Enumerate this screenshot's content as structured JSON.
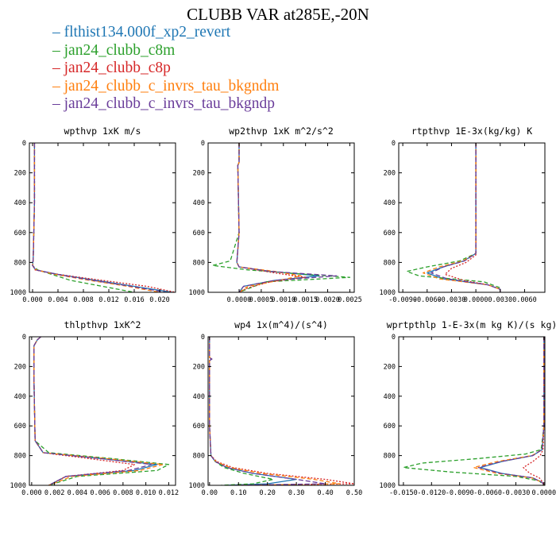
{
  "title": "CLUBB VAR at285E,-20N",
  "legend": [
    {
      "label": "flthist134.000f_xp2_revert",
      "color": "#1f77b4"
    },
    {
      "label": "jan24_clubb_c8m",
      "color": "#2ca02c"
    },
    {
      "label": "jan24_clubb_c8p",
      "color": "#d62728"
    },
    {
      "label": "jan24_clubb_c_invrs_tau_bkgndm",
      "color": "#ff7f0e"
    },
    {
      "label": "jan24_clubb_c_invrs_tau_bkgndp",
      "color": "#6a3d9a"
    }
  ],
  "chart_data": [
    {
      "type": "line",
      "title": "wpthvp  1xK m/s",
      "ylim": [
        1000,
        0
      ],
      "yticks": [
        0,
        200,
        400,
        600,
        800,
        1000
      ],
      "xlim": [
        -0.0005,
        0.0225
      ],
      "xticks": [
        0.0,
        0.004,
        0.008,
        0.012,
        0.016,
        0.02
      ],
      "xticklabels": [
        "0.000",
        "0.004",
        "0.008",
        "0.012",
        "0.016",
        "0.020"
      ],
      "series": [
        {
          "y": [
            0,
            400,
            780,
            820,
            850,
            880,
            920,
            960,
            1000
          ],
          "x": [
            0.0003,
            0.0003,
            0.0001,
            0.0,
            0.0005,
            0.004,
            0.01,
            0.016,
            0.022
          ]
        },
        {
          "y": [
            0,
            400,
            780,
            820,
            850,
            880,
            920,
            960,
            1000
          ],
          "x": [
            0.0003,
            0.0003,
            0.0001,
            0.0,
            0.0008,
            0.003,
            0.006,
            0.011,
            0.016
          ]
        },
        {
          "y": [
            0,
            400,
            780,
            820,
            850,
            880,
            920,
            960,
            1000
          ],
          "x": [
            0.0003,
            0.0003,
            0.0001,
            0.0,
            0.0004,
            0.004,
            0.011,
            0.018,
            0.0225
          ]
        },
        {
          "y": [
            0,
            400,
            780,
            820,
            850,
            880,
            920,
            960,
            1000
          ],
          "x": [
            0.0003,
            0.0003,
            0.0001,
            0.0,
            0.0006,
            0.0035,
            0.009,
            0.015,
            0.02
          ]
        },
        {
          "y": [
            0,
            400,
            780,
            820,
            850,
            880,
            920,
            960,
            1000
          ],
          "x": [
            0.0003,
            0.0003,
            0.0001,
            0.0,
            0.0005,
            0.0038,
            0.0095,
            0.0155,
            0.021
          ]
        }
      ]
    },
    {
      "type": "line",
      "title": "wp2thvp  1xK m^2/s^2",
      "ylim": [
        1000,
        0
      ],
      "yticks": [
        0,
        200,
        400,
        600,
        800,
        1000
      ],
      "xlim": [
        -0.0007,
        0.0026
      ],
      "xticks": [
        0.0,
        0.0005,
        0.001,
        0.0015,
        0.002,
        0.0025
      ],
      "xticklabels": [
        "0.0000",
        "0.0005",
        "0.0010",
        "0.0015",
        "0.0020",
        "0.0025"
      ],
      "series": [
        {
          "y": [
            0,
            130,
            150,
            600,
            800,
            830,
            860,
            890,
            920,
            960,
            1000
          ],
          "x": [
            0.0,
            0.0,
            -3e-05,
            0.0,
            -5e-05,
            0.0,
            0.0007,
            0.0018,
            0.0008,
            0.0001,
            0.0
          ]
        },
        {
          "y": [
            0,
            130,
            150,
            600,
            790,
            820,
            850,
            880,
            900,
            930,
            1000
          ],
          "x": [
            0.0,
            0.0,
            -3e-05,
            0.0,
            -0.0002,
            -0.0006,
            0.0002,
            0.0015,
            0.0025,
            0.0006,
            0.0
          ]
        },
        {
          "y": [
            0,
            130,
            150,
            600,
            800,
            830,
            870,
            900,
            930,
            970,
            1000
          ],
          "x": [
            0.0,
            0.0,
            -3e-05,
            0.0,
            -5e-05,
            0.0,
            0.0008,
            0.0015,
            0.0007,
            0.0002,
            0.0
          ]
        },
        {
          "y": [
            0,
            130,
            150,
            600,
            800,
            830,
            860,
            890,
            920,
            960,
            1000
          ],
          "x": [
            0.0,
            0.0,
            -3e-05,
            0.0,
            -5e-05,
            0.0,
            0.0008,
            0.0014,
            0.0009,
            0.0002,
            0.0
          ]
        },
        {
          "y": [
            0,
            130,
            150,
            600,
            800,
            830,
            860,
            890,
            920,
            960,
            1000
          ],
          "x": [
            0.0,
            0.0,
            -3e-05,
            0.0,
            -5e-05,
            0.0,
            0.0007,
            0.0022,
            0.0008,
            0.0001,
            0.0
          ]
        }
      ]
    },
    {
      "type": "line",
      "title": "rtpthvp  1E-3x(kg/kg) K",
      "ylim": [
        1000,
        0
      ],
      "yticks": [
        0,
        200,
        400,
        600,
        800,
        1000
      ],
      "xlim": [
        -0.0095,
        0.0085
      ],
      "xticks": [
        -0.009,
        -0.006,
        -0.003,
        0.0,
        0.003,
        0.006
      ],
      "xticklabels": [
        "-0.0090",
        "-0.0060",
        "-0.0030",
        "0.0000",
        "0.0030",
        "0.0060"
      ],
      "series": [
        {
          "y": [
            0,
            740,
            790,
            830,
            870,
            910,
            950,
            980,
            1000
          ],
          "x": [
            0.0,
            0.0,
            -0.0015,
            -0.004,
            -0.006,
            -0.004,
            0.0015,
            0.003,
            0.003
          ]
        },
        {
          "y": [
            0,
            740,
            790,
            830,
            860,
            890,
            930,
            970,
            1000
          ],
          "x": [
            0.0,
            0.0,
            -0.002,
            -0.006,
            -0.0085,
            -0.007,
            0.001,
            0.003,
            0.003
          ]
        },
        {
          "y": [
            0,
            750,
            800,
            840,
            880,
            920,
            950,
            980,
            1000
          ],
          "x": [
            0.0,
            0.0,
            -0.0012,
            -0.003,
            -0.0038,
            -0.0015,
            0.0015,
            0.003,
            0.003
          ]
        },
        {
          "y": [
            0,
            740,
            790,
            830,
            870,
            910,
            950,
            980,
            1000
          ],
          "x": [
            0.0,
            0.0,
            -0.0016,
            -0.0045,
            -0.0065,
            -0.0045,
            0.0015,
            0.003,
            0.003
          ]
        },
        {
          "y": [
            0,
            740,
            790,
            830,
            870,
            910,
            950,
            980,
            1000
          ],
          "x": [
            0.0,
            0.0,
            -0.0014,
            -0.004,
            -0.0055,
            -0.0035,
            0.0015,
            0.003,
            0.003
          ]
        }
      ]
    },
    {
      "type": "line",
      "title": "thlpthvp  1xK^2",
      "ylim": [
        1000,
        0
      ],
      "yticks": [
        0,
        200,
        400,
        600,
        800,
        1000
      ],
      "xlim": [
        -0.0002,
        0.0126
      ],
      "xticks": [
        0.0,
        0.002,
        0.004,
        0.006,
        0.008,
        0.01,
        0.012
      ],
      "xticklabels": [
        "0.000",
        "0.002",
        "0.004",
        "0.006",
        "0.008",
        "0.010",
        "0.012"
      ],
      "series": [
        {
          "y": [
            0,
            20,
            60,
            300,
            700,
            780,
            820,
            860,
            900,
            940,
            1000
          ],
          "x": [
            0.0008,
            0.0005,
            0.0002,
            0.0002,
            0.0003,
            0.001,
            0.006,
            0.011,
            0.009,
            0.003,
            0.0015
          ]
        },
        {
          "y": [
            0,
            20,
            60,
            300,
            700,
            780,
            820,
            860,
            900,
            940,
            1000
          ],
          "x": [
            0.0008,
            0.0005,
            0.0002,
            0.0002,
            0.0003,
            0.0015,
            0.007,
            0.012,
            0.011,
            0.004,
            0.0015
          ]
        },
        {
          "y": [
            0,
            20,
            60,
            300,
            700,
            780,
            820,
            860,
            900,
            940,
            1000
          ],
          "x": [
            0.0008,
            0.0005,
            0.0002,
            0.0002,
            0.0003,
            0.001,
            0.005,
            0.009,
            0.008,
            0.003,
            0.0015
          ]
        },
        {
          "y": [
            0,
            20,
            60,
            300,
            700,
            780,
            820,
            860,
            900,
            940,
            1000
          ],
          "x": [
            0.0008,
            0.0005,
            0.0002,
            0.0002,
            0.0003,
            0.001,
            0.0065,
            0.0115,
            0.0095,
            0.0035,
            0.0015
          ]
        },
        {
          "y": [
            0,
            20,
            60,
            300,
            700,
            780,
            820,
            860,
            900,
            940,
            1000
          ],
          "x": [
            0.0008,
            0.0005,
            0.0002,
            0.0002,
            0.0003,
            0.001,
            0.006,
            0.0105,
            0.0085,
            0.003,
            0.0015
          ]
        }
      ]
    },
    {
      "type": "line",
      "title": "wp4  1x(m^4)/(s^4)",
      "ylim": [
        1000,
        0
      ],
      "yticks": [
        0,
        200,
        400,
        600,
        800,
        1000
      ],
      "xlim": [
        -0.005,
        0.5
      ],
      "xticks": [
        0.0,
        0.1,
        0.2,
        0.3,
        0.4,
        0.5
      ],
      "xticklabels": [
        "0.00",
        "0.10",
        "0.20",
        "0.30",
        "0.40",
        "0.50"
      ],
      "series": [
        {
          "y": [
            0,
            140,
            150,
            160,
            600,
            800,
            840,
            880,
            920,
            960,
            990,
            1000
          ],
          "x": [
            0.0,
            0.0,
            0.008,
            0.0,
            0.0,
            0.005,
            0.02,
            0.06,
            0.15,
            0.3,
            0.2,
            0.05
          ]
        },
        {
          "y": [
            0,
            140,
            150,
            160,
            600,
            800,
            840,
            880,
            920,
            960,
            990,
            1000
          ],
          "x": [
            0.0,
            0.0,
            0.008,
            0.0,
            0.0,
            0.005,
            0.02,
            0.05,
            0.12,
            0.22,
            0.15,
            0.04
          ]
        },
        {
          "y": [
            0,
            140,
            150,
            160,
            600,
            800,
            840,
            880,
            920,
            960,
            990,
            1000
          ],
          "x": [
            0.0,
            0.0,
            0.008,
            0.0,
            0.0,
            0.005,
            0.025,
            0.08,
            0.2,
            0.4,
            0.5,
            0.1
          ]
        },
        {
          "y": [
            0,
            140,
            150,
            160,
            600,
            800,
            840,
            880,
            920,
            960,
            990,
            1000
          ],
          "x": [
            0.0,
            0.0,
            0.008,
            0.0,
            0.0,
            0.005,
            0.022,
            0.07,
            0.18,
            0.36,
            0.45,
            0.1
          ]
        },
        {
          "y": [
            0,
            140,
            150,
            160,
            600,
            800,
            840,
            880,
            920,
            960,
            990,
            1000
          ],
          "x": [
            0.0,
            0.0,
            0.008,
            0.0,
            0.0,
            0.005,
            0.02,
            0.06,
            0.15,
            0.3,
            0.4,
            0.08
          ]
        }
      ]
    },
    {
      "type": "line",
      "title": "wprtpthlp  1-E-3x(m kg K)/(s kg)",
      "ylim": [
        1000,
        0
      ],
      "yticks": [
        0,
        200,
        400,
        600,
        800,
        1000
      ],
      "xlim": [
        -0.0155,
        0.0001
      ],
      "xticks": [
        -0.015,
        -0.012,
        -0.009,
        -0.006,
        -0.003,
        0.0
      ],
      "xticklabels": [
        "-0.0150",
        "-0.0120",
        "-0.0090",
        "-0.0060",
        "-0.0030",
        "0.0000"
      ],
      "series": [
        {
          "y": [
            0,
            600,
            760,
            800,
            840,
            880,
            920,
            950,
            980,
            1000
          ],
          "x": [
            0.0,
            0.0,
            -0.0002,
            -0.0012,
            -0.0045,
            -0.0068,
            -0.0045,
            -0.0012,
            -0.0002,
            0.0
          ]
        },
        {
          "y": [
            0,
            600,
            760,
            790,
            820,
            850,
            880,
            910,
            940,
            970,
            1000
          ],
          "x": [
            0.0,
            0.0,
            -0.0003,
            -0.002,
            -0.007,
            -0.013,
            -0.015,
            -0.01,
            -0.003,
            -0.0005,
            0.0
          ]
        },
        {
          "y": [
            0,
            600,
            760,
            800,
            840,
            880,
            920,
            950,
            980,
            1000
          ],
          "x": [
            0.0,
            0.0,
            -0.0001,
            -0.0004,
            -0.0012,
            -0.0022,
            -0.0015,
            -0.0005,
            -0.0001,
            0.0
          ]
        },
        {
          "y": [
            0,
            600,
            760,
            800,
            840,
            880,
            920,
            950,
            980,
            1000
          ],
          "x": [
            0.0,
            0.0,
            -0.0002,
            -0.0013,
            -0.005,
            -0.0075,
            -0.005,
            -0.0013,
            -0.0002,
            0.0
          ]
        },
        {
          "y": [
            0,
            600,
            760,
            800,
            840,
            880,
            920,
            950,
            980,
            1000
          ],
          "x": [
            0.0,
            0.0,
            -0.0002,
            -0.0012,
            -0.0046,
            -0.007,
            -0.0046,
            -0.0012,
            -0.0002,
            0.0
          ]
        }
      ]
    }
  ]
}
